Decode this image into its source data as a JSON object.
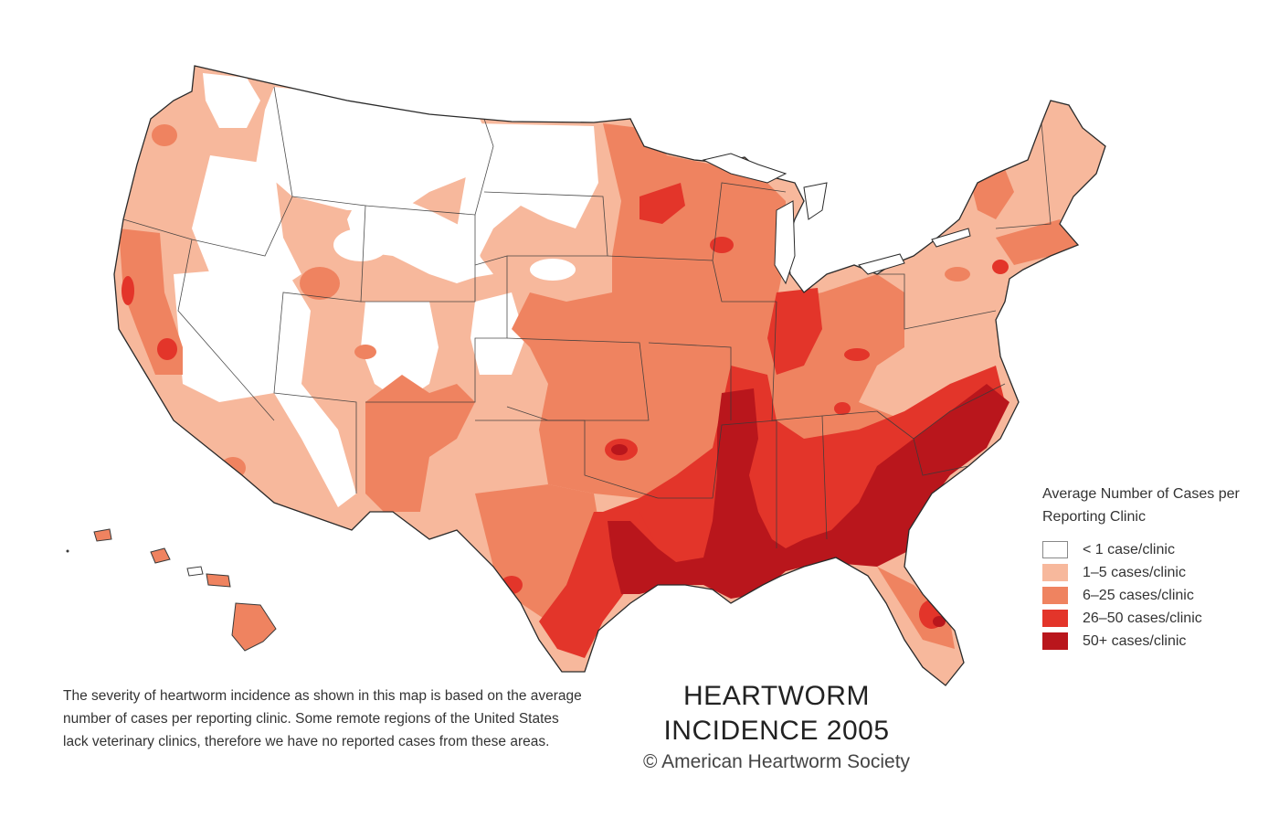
{
  "map": {
    "title_lines": [
      "HEARTWORM",
      "INCIDENCE 2005"
    ],
    "credit": "© American Heartworm Society",
    "caption": "The severity of heartworm incidence as shown in this map is based on the average number of cases per reporting clinic. Some remote regions of the United States lack veterinary clinics, therefore we have no reported cases from these areas.",
    "colors": {
      "level0": "#ffffff",
      "level1": "#f7b89c",
      "level2": "#ef8360",
      "level3": "#e3352a",
      "level4": "#b9161c",
      "border": "#3a3a3a"
    }
  },
  "legend": {
    "title": "Average Number of Cases per Reporting Clinic",
    "items": [
      {
        "label": "< 1 case/clinic",
        "color": "#ffffff"
      },
      {
        "label": "1–5 cases/clinic",
        "color": "#f7b89c"
      },
      {
        "label": "6–25 cases/clinic",
        "color": "#ef8360"
      },
      {
        "label": "26–50 cases/clinic",
        "color": "#e3352a"
      },
      {
        "label": "50+ cases/clinic",
        "color": "#b9161c"
      }
    ]
  }
}
